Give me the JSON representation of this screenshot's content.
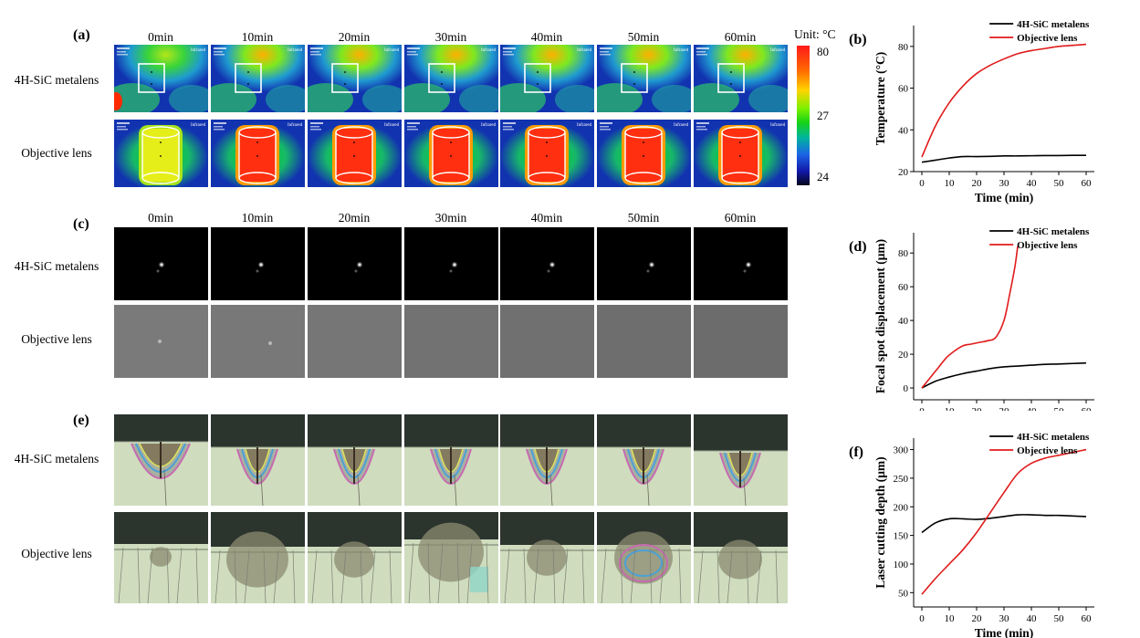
{
  "times": [
    "0min",
    "10min",
    "20min",
    "30min",
    "40min",
    "50min",
    "60min"
  ],
  "row_labels": {
    "metalens": "4H-SiC metalens",
    "objective": "Objective lens"
  },
  "panel_labels": {
    "a": "(a)",
    "b": "(b)",
    "c": "(c)",
    "d": "(d)",
    "e": "(e)",
    "f": "(f)"
  },
  "colorbar": {
    "unit": "Unit: °C",
    "max": "80",
    "mid": "27",
    "min": "24"
  },
  "thermal_tag": "Infrared",
  "chart_data": [
    {
      "type": "line",
      "panel": "(b)",
      "xlabel": "Time (min)",
      "ylabel": "Temperature (°C)",
      "xlim": [
        -3,
        63
      ],
      "ylim": [
        20,
        90
      ],
      "xticks": [
        0,
        10,
        20,
        30,
        40,
        50,
        60
      ],
      "yticks": [
        20,
        40,
        60,
        80
      ],
      "legend": "top-right",
      "series": [
        {
          "name": "4H-SiC metalens",
          "color": "#000000",
          "x": [
            0,
            5,
            10,
            15,
            20,
            25,
            30,
            35,
            40,
            45,
            50,
            55,
            60
          ],
          "y": [
            24.5,
            25.5,
            26.5,
            27.2,
            27.2,
            27.3,
            27.5,
            27.5,
            27.6,
            27.7,
            27.7,
            27.8,
            27.8
          ]
        },
        {
          "name": "Objective lens",
          "color": "#e01b1b",
          "x": [
            0,
            5,
            10,
            15,
            20,
            25,
            30,
            35,
            40,
            45,
            50,
            55,
            60
          ],
          "y": [
            27,
            42,
            53,
            61,
            67,
            71,
            74,
            76.5,
            78,
            79,
            80,
            80.5,
            81
          ]
        }
      ]
    },
    {
      "type": "line",
      "panel": "(d)",
      "xlabel": "Time (min)",
      "ylabel": "Focal spot displacement (μm)",
      "xlim": [
        -3,
        63
      ],
      "ylim": [
        -7,
        92
      ],
      "xticks": [
        0,
        10,
        20,
        30,
        40,
        50,
        60
      ],
      "yticks": [
        0,
        20,
        40,
        60,
        80
      ],
      "legend": "top-right",
      "series": [
        {
          "name": "4H-SiC metalens",
          "color": "#000000",
          "x": [
            0,
            5,
            10,
            15,
            20,
            25,
            30,
            35,
            40,
            45,
            50,
            55,
            60
          ],
          "y": [
            0,
            4,
            6.5,
            8.5,
            10,
            11.5,
            12.5,
            13,
            13.5,
            14,
            14.2,
            14.5,
            14.8
          ]
        },
        {
          "name": "Objective lens",
          "color": "#e01b1b",
          "x": [
            0,
            3,
            6,
            9,
            12,
            15,
            18,
            21,
            24,
            27,
            30,
            32,
            34,
            35
          ],
          "y": [
            0,
            6,
            12,
            18,
            22,
            25,
            26,
            27,
            28,
            30,
            40,
            55,
            72,
            84
          ]
        }
      ]
    },
    {
      "type": "line",
      "panel": "(f)",
      "xlabel": "Time (min)",
      "ylabel": "Laser cutting depth (μm)",
      "xlim": [
        -3,
        63
      ],
      "ylim": [
        25,
        320
      ],
      "xticks": [
        0,
        10,
        20,
        30,
        40,
        50,
        60
      ],
      "yticks": [
        50,
        100,
        150,
        200,
        250,
        300
      ],
      "legend": "top-right",
      "series": [
        {
          "name": "4H-SiC metalens",
          "color": "#000000",
          "x": [
            0,
            5,
            10,
            15,
            20,
            25,
            30,
            35,
            40,
            45,
            50,
            55,
            60
          ],
          "y": [
            155,
            172,
            179,
            179,
            178,
            180,
            183,
            186,
            186,
            185,
            185,
            184,
            183
          ]
        },
        {
          "name": "Objective lens",
          "color": "#e01b1b",
          "x": [
            0,
            5,
            10,
            15,
            20,
            25,
            30,
            35,
            40,
            45,
            50,
            55,
            60
          ],
          "y": [
            47,
            75,
            100,
            125,
            155,
            190,
            225,
            258,
            276,
            285,
            290,
            295,
            300
          ]
        }
      ]
    }
  ]
}
